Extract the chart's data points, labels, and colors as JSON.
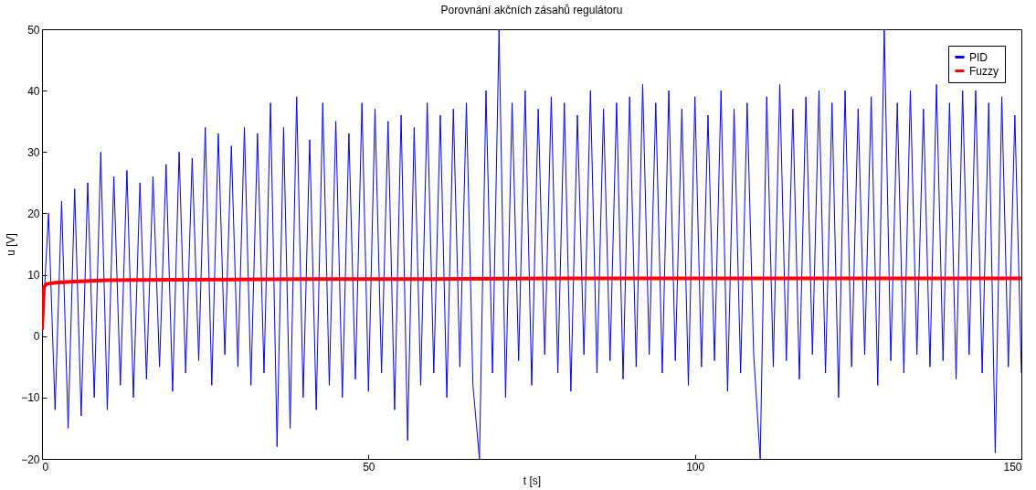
{
  "chart_data": {
    "type": "line",
    "title": "Porovnání akčních zásahů regulátoru",
    "xlabel": "t [s]",
    "ylabel": "u [V]",
    "xlim": [
      0,
      150
    ],
    "xticks": [
      0,
      50,
      100,
      150
    ],
    "ylim": [
      -20,
      50
    ],
    "yticks": [
      -20,
      -10,
      0,
      10,
      20,
      30,
      40,
      50
    ],
    "grid": false,
    "legend": "top right",
    "series": [
      {
        "name": "PID",
        "color": "#0000ff",
        "x": [
          0,
          1,
          2,
          3,
          4,
          5,
          6,
          7,
          8,
          9,
          10,
          11,
          12,
          13,
          14,
          15,
          16,
          17,
          18,
          19,
          20,
          21,
          22,
          23,
          24,
          25,
          26,
          27,
          28,
          29,
          30,
          31,
          32,
          33,
          34,
          35,
          36,
          37,
          38,
          39,
          40,
          41,
          42,
          43,
          44,
          45,
          46,
          47,
          48,
          49,
          50,
          51,
          52,
          53,
          54,
          55,
          56,
          57,
          58,
          59,
          60,
          61,
          62,
          63,
          64,
          65,
          66,
          67,
          68,
          69,
          70,
          71,
          72,
          73,
          74,
          75,
          76,
          77,
          78,
          79,
          80,
          81,
          82,
          83,
          84,
          85,
          86,
          87,
          88,
          89,
          90,
          91,
          92,
          93,
          94,
          95,
          96,
          97,
          98,
          99,
          100,
          101,
          102,
          103,
          104,
          105,
          106,
          107,
          108,
          109,
          110,
          111,
          112,
          113,
          114,
          115,
          116,
          117,
          118,
          119,
          120,
          121,
          122,
          123,
          124,
          125,
          126,
          127,
          128,
          129,
          130,
          131,
          132,
          133,
          134,
          135,
          136,
          137,
          138,
          139,
          140,
          141,
          142,
          143,
          144,
          145,
          146,
          147,
          148,
          149,
          150
        ],
        "values": [
          0,
          20,
          -12,
          22,
          -15,
          24,
          -13,
          25,
          -10,
          30,
          -12,
          26,
          -8,
          27,
          -10,
          25,
          -7,
          26,
          -5,
          28,
          -9,
          30,
          -6,
          29,
          -4,
          34,
          -8,
          33,
          -3,
          31,
          -5,
          34,
          -8,
          33,
          -6,
          38,
          -18,
          34,
          -15,
          39,
          -10,
          32,
          -12,
          38,
          -8,
          35,
          -10,
          33,
          -7,
          38,
          -9,
          37,
          -6,
          35,
          -12,
          36,
          -17,
          34,
          -8,
          38,
          -6,
          36,
          -10,
          37,
          -5,
          38,
          -8,
          -20,
          40,
          -6,
          50,
          -10,
          38,
          -4,
          40,
          -8,
          37,
          -3,
          39,
          -6,
          38,
          -9,
          36,
          -3,
          40,
          -6,
          37,
          -4,
          38,
          -7,
          39,
          -5,
          41,
          -3,
          38,
          -6,
          40,
          -4,
          37,
          -8,
          39,
          -5,
          36,
          -4,
          40,
          -9,
          37,
          -6,
          38,
          -3,
          -20,
          39,
          -5,
          41,
          -4,
          37,
          -7,
          39,
          -3,
          40,
          -6,
          38,
          -10,
          40,
          -5,
          37,
          -3,
          39,
          -8,
          50,
          -4,
          38,
          -6,
          40,
          -3,
          37,
          -5,
          41,
          -4,
          38,
          -7,
          40,
          -3,
          40,
          -6,
          38,
          -19,
          39,
          -5,
          36,
          -6
        ]
      },
      {
        "name": "Fuzzy",
        "color": "#ff0000",
        "x": [
          0,
          0.3,
          0.7,
          2,
          5,
          10,
          20,
          40,
          60,
          80,
          100,
          120,
          150
        ],
        "values": [
          1,
          8,
          8.5,
          8.7,
          8.9,
          9.1,
          9.2,
          9.3,
          9.3,
          9.4,
          9.4,
          9.4,
          9.4
        ]
      }
    ]
  }
}
